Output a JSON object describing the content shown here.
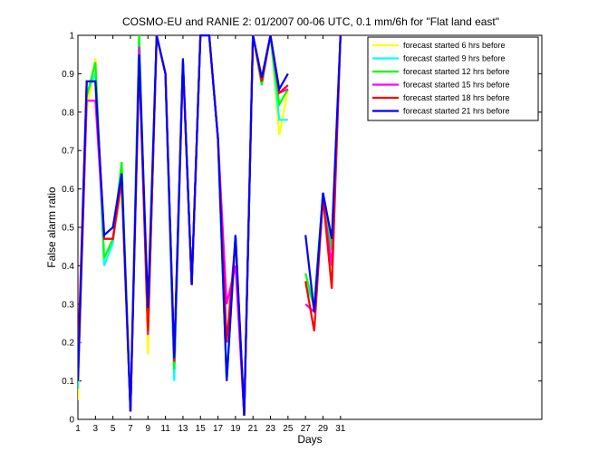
{
  "chart_data": {
    "type": "line",
    "title": "COSMO-EU and RANIE 2: 01/2007 00-06 UTC, 0.1 mm/6h for \"Flat land east\"",
    "xlabel": "Days",
    "ylabel": "False alarm ratio",
    "xlim": [
      1,
      54
    ],
    "ylim": [
      0,
      1
    ],
    "xticks": [
      1,
      3,
      5,
      7,
      9,
      11,
      13,
      15,
      17,
      19,
      21,
      23,
      25,
      27,
      29,
      31
    ],
    "yticks": [
      0,
      0.1,
      0.2,
      0.3,
      0.4,
      0.5,
      0.6,
      0.7,
      0.8,
      0.9,
      1
    ],
    "legend_position": "top-right",
    "x": [
      1,
      2,
      3,
      4,
      5,
      6,
      7,
      8,
      9,
      10,
      11,
      12,
      13,
      14,
      15,
      16,
      17,
      18,
      19,
      20,
      21,
      22,
      23,
      24,
      25,
      26,
      27,
      28,
      29,
      30,
      31
    ],
    "series": [
      {
        "name": "forecast started 6 hrs before",
        "color": "#ffff00",
        "values": [
          0.05,
          0.8,
          0.94,
          0.4,
          0.47,
          0.6,
          0.02,
          1.0,
          0.17,
          1.0,
          0.9,
          0.15,
          0.93,
          0.35,
          1.0,
          1.0,
          0.73,
          0.1,
          0.48,
          0.01,
          1.0,
          0.88,
          1.0,
          0.74,
          0.86,
          null,
          0.36,
          0.3,
          0.59,
          0.39,
          1.0
        ]
      },
      {
        "name": "forecast started 9 hrs before",
        "color": "#00ffff",
        "values": [
          0.08,
          0.85,
          0.9,
          0.4,
          0.46,
          0.64,
          0.02,
          1.0,
          0.22,
          1.0,
          0.9,
          0.1,
          0.93,
          0.35,
          1.0,
          1.0,
          0.73,
          0.1,
          0.48,
          0.01,
          1.0,
          0.88,
          1.0,
          0.78,
          0.78,
          null,
          0.35,
          0.3,
          0.59,
          0.45,
          1.0
        ]
      },
      {
        "name": "forecast started 12 hrs before",
        "color": "#00ff00",
        "values": [
          0.1,
          0.84,
          0.93,
          0.42,
          0.47,
          0.67,
          0.02,
          1.0,
          0.22,
          1.0,
          0.9,
          0.13,
          0.93,
          0.35,
          1.0,
          1.0,
          0.73,
          0.1,
          0.48,
          0.01,
          1.0,
          0.87,
          1.0,
          0.82,
          0.86,
          null,
          0.38,
          0.29,
          0.59,
          0.44,
          1.0
        ]
      },
      {
        "name": "forecast started 15 hrs before",
        "color": "#ff00ff",
        "values": [
          0.1,
          0.83,
          0.83,
          0.47,
          0.47,
          0.62,
          0.02,
          0.97,
          0.22,
          1.0,
          0.9,
          0.15,
          0.93,
          0.35,
          1.0,
          1.0,
          0.73,
          0.3,
          0.4,
          0.01,
          1.0,
          0.88,
          1.0,
          0.85,
          0.86,
          null,
          0.3,
          0.28,
          0.57,
          0.4,
          1.0
        ]
      },
      {
        "name": "forecast started 18 hrs before",
        "color": "#ff0000",
        "values": [
          0.15,
          0.88,
          0.88,
          0.47,
          0.47,
          0.63,
          0.02,
          0.93,
          0.23,
          1.0,
          0.9,
          0.15,
          0.93,
          0.35,
          1.0,
          1.0,
          0.73,
          0.2,
          0.47,
          0.01,
          1.0,
          0.88,
          1.0,
          0.85,
          0.87,
          null,
          0.36,
          0.23,
          0.58,
          0.34,
          1.0
        ]
      },
      {
        "name": "forecast started 21 hrs before",
        "color": "#0000ff",
        "values": [
          0.1,
          0.88,
          0.88,
          0.48,
          0.5,
          0.64,
          0.02,
          0.95,
          0.29,
          1.0,
          0.9,
          0.16,
          0.94,
          0.35,
          1.0,
          1.0,
          0.73,
          0.1,
          0.48,
          0.01,
          1.0,
          0.89,
          1.0,
          0.86,
          0.9,
          null,
          0.48,
          0.28,
          0.59,
          0.47,
          1.0
        ]
      }
    ]
  }
}
